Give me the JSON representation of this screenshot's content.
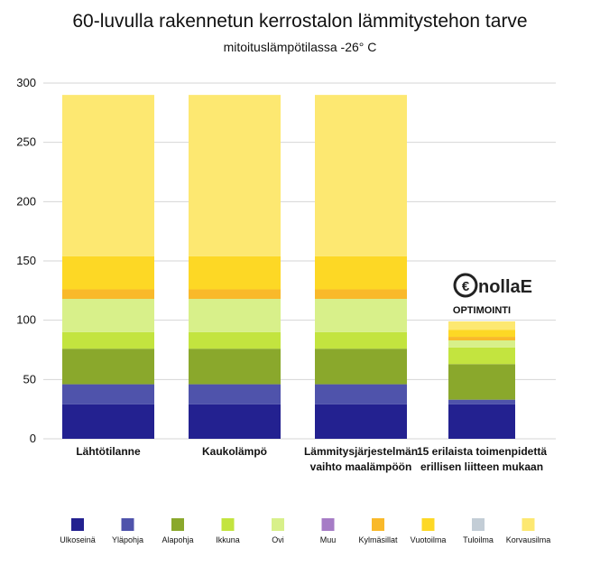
{
  "chart_data": {
    "type": "bar",
    "stacked": true,
    "title": "60-luvulla rakennetun kerrostalon lämmitystehon tarve",
    "subtitle": "mitoituslämpötilassa -26° C",
    "ylim": [
      0,
      300
    ],
    "yticks": [
      0,
      50,
      100,
      150,
      200,
      250,
      300
    ],
    "grid": true,
    "legend_position": "bottom",
    "categories": [
      [
        "Lähtötilanne"
      ],
      [
        "Kaukolämpö"
      ],
      [
        "Lämmitysjärjestelmän",
        "vaihto maalämpöön"
      ],
      [
        "15 erilaista toimenpidettä",
        "erillisen liitteen mukaan"
      ]
    ],
    "series": [
      {
        "name": "Ulkoseinä",
        "color": "#232190",
        "values": [
          29,
          29,
          29,
          29
        ]
      },
      {
        "name": "Yläpohja",
        "color": "#4f53ab",
        "values": [
          17,
          17,
          17,
          4
        ]
      },
      {
        "name": "Alapohja",
        "color": "#8aa82c",
        "values": [
          30,
          30,
          30,
          30
        ]
      },
      {
        "name": "Ikkuna",
        "color": "#c3e43f",
        "values": [
          14,
          14,
          14,
          14
        ]
      },
      {
        "name": "Ovi",
        "color": "#d8f08a",
        "values": [
          28,
          28,
          28,
          6
        ]
      },
      {
        "name": "Muu",
        "color": "#a67cc6",
        "values": [
          0,
          0,
          0,
          0
        ]
      },
      {
        "name": "Kylmäsillat",
        "color": "#f9b92a",
        "values": [
          8,
          8,
          8,
          3
        ]
      },
      {
        "name": "Vuotoilma",
        "color": "#fdd825",
        "values": [
          28,
          28,
          28,
          6
        ]
      },
      {
        "name": "Tuloilma",
        "color": "#c3cdd6",
        "values": [
          0,
          0,
          0,
          0
        ]
      },
      {
        "name": "Korvausilma",
        "color": "#fde871",
        "values": [
          136,
          136,
          136,
          7
        ]
      }
    ]
  },
  "annotation": {
    "logo_symbol": "€",
    "logo_text": "nollaE",
    "label": "OPTIMOINTI"
  }
}
